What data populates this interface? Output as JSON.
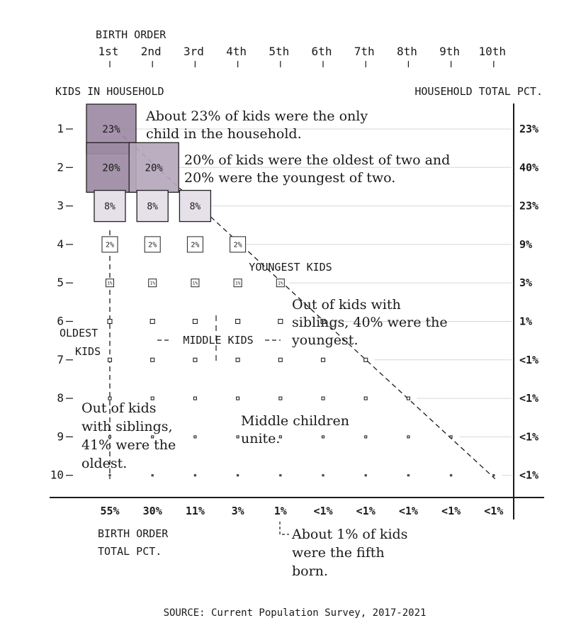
{
  "chart_data": {
    "type": "heatmap",
    "title": "",
    "top_axis_title": "BIRTH ORDER",
    "left_axis_title": "KIDS IN HOUSEHOLD",
    "right_axis_title": "HOUSEHOLD TOTAL PCT.",
    "bottom_axis_title_line1": "BIRTH ORDER",
    "bottom_axis_title_line2": "TOTAL PCT.",
    "birth_order_labels": [
      "1st",
      "2nd",
      "3rd",
      "4th",
      "5th",
      "6th",
      "7th",
      "8th",
      "9th",
      "10th"
    ],
    "kids_labels": [
      "1",
      "2",
      "3",
      "4",
      "5",
      "6",
      "7",
      "8",
      "9",
      "10"
    ],
    "household_totals": [
      "23%",
      "40%",
      "23%",
      "9%",
      "3%",
      "1%",
      "<1%",
      "<1%",
      "<1%",
      "<1%"
    ],
    "birth_order_totals": [
      "55%",
      "30%",
      "11%",
      "3%",
      "1%",
      "<1%",
      "<1%",
      "<1%",
      "<1%",
      "<1%"
    ],
    "cells": [
      {
        "kids": 1,
        "order": 1,
        "value": 23,
        "label": "23%"
      },
      {
        "kids": 2,
        "order": 1,
        "value": 20,
        "label": "20%"
      },
      {
        "kids": 2,
        "order": 2,
        "value": 20,
        "label": "20%"
      },
      {
        "kids": 3,
        "order": 1,
        "value": 8,
        "label": "8%"
      },
      {
        "kids": 3,
        "order": 2,
        "value": 8,
        "label": "8%"
      },
      {
        "kids": 3,
        "order": 3,
        "value": 8,
        "label": "8%"
      },
      {
        "kids": 4,
        "order": 1,
        "value": 2,
        "label": "2%"
      },
      {
        "kids": 4,
        "order": 2,
        "value": 2,
        "label": "2%"
      },
      {
        "kids": 4,
        "order": 3,
        "value": 2,
        "label": "2%"
      },
      {
        "kids": 4,
        "order": 4,
        "value": 2,
        "label": "2%"
      },
      {
        "kids": 5,
        "order": 1,
        "value": 1,
        "label": "1%"
      },
      {
        "kids": 5,
        "order": 2,
        "value": 1,
        "label": "1%"
      },
      {
        "kids": 5,
        "order": 3,
        "value": 1,
        "label": "1%"
      },
      {
        "kids": 5,
        "order": 4,
        "value": 1,
        "label": "1%"
      },
      {
        "kids": 5,
        "order": 5,
        "value": 1,
        "label": "1%"
      },
      {
        "kids": 6,
        "order": 1,
        "value": 0.25,
        "label": ""
      },
      {
        "kids": 6,
        "order": 2,
        "value": 0.25,
        "label": ""
      },
      {
        "kids": 6,
        "order": 3,
        "value": 0.25,
        "label": ""
      },
      {
        "kids": 6,
        "order": 4,
        "value": 0.25,
        "label": ""
      },
      {
        "kids": 6,
        "order": 5,
        "value": 0.25,
        "label": ""
      },
      {
        "kids": 6,
        "order": 6,
        "value": 0.25,
        "label": ""
      },
      {
        "kids": 7,
        "order": 1,
        "value": 0.12,
        "label": ""
      },
      {
        "kids": 7,
        "order": 2,
        "value": 0.12,
        "label": ""
      },
      {
        "kids": 7,
        "order": 3,
        "value": 0.12,
        "label": ""
      },
      {
        "kids": 7,
        "order": 4,
        "value": 0.12,
        "label": ""
      },
      {
        "kids": 7,
        "order": 5,
        "value": 0.12,
        "label": ""
      },
      {
        "kids": 7,
        "order": 6,
        "value": 0.12,
        "label": ""
      },
      {
        "kids": 7,
        "order": 7,
        "value": 0.12,
        "label": ""
      },
      {
        "kids": 8,
        "order": 1,
        "value": 0.05,
        "label": ""
      },
      {
        "kids": 8,
        "order": 2,
        "value": 0.05,
        "label": ""
      },
      {
        "kids": 8,
        "order": 3,
        "value": 0.05,
        "label": ""
      },
      {
        "kids": 8,
        "order": 4,
        "value": 0.05,
        "label": ""
      },
      {
        "kids": 8,
        "order": 5,
        "value": 0.05,
        "label": ""
      },
      {
        "kids": 8,
        "order": 6,
        "value": 0.05,
        "label": ""
      },
      {
        "kids": 8,
        "order": 7,
        "value": 0.05,
        "label": ""
      },
      {
        "kids": 8,
        "order": 8,
        "value": 0.05,
        "label": ""
      },
      {
        "kids": 9,
        "order": 1,
        "value": 0.03,
        "label": ""
      },
      {
        "kids": 9,
        "order": 2,
        "value": 0.03,
        "label": ""
      },
      {
        "kids": 9,
        "order": 3,
        "value": 0.03,
        "label": ""
      },
      {
        "kids": 9,
        "order": 4,
        "value": 0.03,
        "label": ""
      },
      {
        "kids": 9,
        "order": 5,
        "value": 0.03,
        "label": ""
      },
      {
        "kids": 9,
        "order": 6,
        "value": 0.03,
        "label": ""
      },
      {
        "kids": 9,
        "order": 7,
        "value": 0.03,
        "label": ""
      },
      {
        "kids": 9,
        "order": 8,
        "value": 0.03,
        "label": ""
      },
      {
        "kids": 9,
        "order": 9,
        "value": 0.03,
        "label": ""
      },
      {
        "kids": 10,
        "order": 1,
        "value": 0.02,
        "label": ""
      },
      {
        "kids": 10,
        "order": 2,
        "value": 0.02,
        "label": ""
      },
      {
        "kids": 10,
        "order": 3,
        "value": 0.02,
        "label": ""
      },
      {
        "kids": 10,
        "order": 4,
        "value": 0.02,
        "label": ""
      },
      {
        "kids": 10,
        "order": 5,
        "value": 0.02,
        "label": ""
      },
      {
        "kids": 10,
        "order": 6,
        "value": 0.02,
        "label": ""
      },
      {
        "kids": 10,
        "order": 7,
        "value": 0.02,
        "label": ""
      },
      {
        "kids": 10,
        "order": 8,
        "value": 0.02,
        "label": ""
      },
      {
        "kids": 10,
        "order": 9,
        "value": 0.02,
        "label": ""
      },
      {
        "kids": 10,
        "order": 10,
        "value": 0.02,
        "label": ""
      }
    ],
    "group_labels": {
      "youngest": "YOUNGEST KIDS",
      "middle": "MIDDLE KIDS",
      "oldest_line1": "OLDEST",
      "oldest_line2": "KIDS"
    },
    "annotations": {
      "only_child": [
        "About 23% of kids were the only",
        "child in the household."
      ],
      "two_kids": [
        "20% of kids were the oldest of two and",
        "20% were the youngest of two."
      ],
      "youngest": [
        "Out of kids with",
        "siblings, 40% were the",
        "youngest."
      ],
      "oldest": [
        "Out of kids",
        "with siblings,",
        "41% were the",
        "oldest."
      ],
      "middle": [
        "Middle children",
        "unite."
      ],
      "fifth": [
        "About 1% of kids",
        "were the fifth",
        "born."
      ]
    },
    "source": "SOURCE: Current Population Survey, 2017-2021",
    "colors": {
      "high": "#9c8aa3",
      "mid": "#b6a7bc",
      "low": "#e6e0e9",
      "none": "#ffffff",
      "stroke": "#222222",
      "grid": "#d7d7d7"
    }
  }
}
